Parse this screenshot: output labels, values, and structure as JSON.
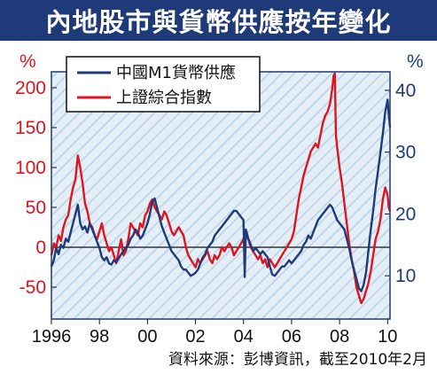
{
  "title": "內地股市與貨幣供應按年變化",
  "source": "資料來源：彭博資訊，截至2010年2月",
  "colors": {
    "title_bg": "#1e3a78",
    "m1": "#1e3a78",
    "index": "#e0141e",
    "plot_bg": "#d9e8f4",
    "zero_line": "#111111"
  },
  "chart_data": {
    "type": "line",
    "title": "內地股市與貨幣供應按年變化",
    "x_tick_labels": [
      "1996",
      "98",
      "00",
      "02",
      "04",
      "06",
      "08",
      "10"
    ],
    "x_ticks": [
      1996,
      1998,
      2000,
      2002,
      2004,
      2006,
      2008,
      2010
    ],
    "xlim": [
      1996,
      2010.1
    ],
    "y_left": {
      "unit": "%",
      "ticks": [
        200,
        150,
        100,
        50,
        0,
        -50
      ],
      "tick_labels": [
        "200",
        "150",
        "100",
        "50",
        "0",
        "-50"
      ],
      "range": [
        -90,
        220
      ]
    },
    "y_right": {
      "unit": "%",
      "ticks": [
        40,
        30,
        20,
        10
      ],
      "tick_labels": [
        "40",
        "30",
        "20",
        "10"
      ],
      "range": [
        3,
        43
      ]
    },
    "legend_placement": "top-left",
    "series": [
      {
        "name": "中國M1貨幣供應",
        "axis": "right",
        "color": "#1e3a78",
        "points": [
          [
            1996.0,
            11.5
          ],
          [
            1996.1,
            12.5
          ],
          [
            1996.2,
            14.5
          ],
          [
            1996.3,
            13.5
          ],
          [
            1996.4,
            15.0
          ],
          [
            1996.5,
            14.5
          ],
          [
            1996.6,
            16.0
          ],
          [
            1996.7,
            15.5
          ],
          [
            1996.8,
            17.0
          ],
          [
            1996.9,
            18.5
          ],
          [
            1997.0,
            20.0
          ],
          [
            1997.1,
            21.5
          ],
          [
            1997.2,
            18.5
          ],
          [
            1997.3,
            17.5
          ],
          [
            1997.4,
            18.0
          ],
          [
            1997.5,
            17.0
          ],
          [
            1997.6,
            18.5
          ],
          [
            1997.7,
            17.5
          ],
          [
            1997.8,
            16.5
          ],
          [
            1997.9,
            15.5
          ],
          [
            1998.0,
            14.5
          ],
          [
            1998.1,
            13.0
          ],
          [
            1998.2,
            12.5
          ],
          [
            1998.3,
            13.0
          ],
          [
            1998.4,
            12.0
          ],
          [
            1998.5,
            11.8
          ],
          [
            1998.6,
            12.5
          ],
          [
            1998.7,
            12.2
          ],
          [
            1998.8,
            12.8
          ],
          [
            1998.9,
            13.5
          ],
          [
            1999.0,
            14.0
          ],
          [
            1999.1,
            14.5
          ],
          [
            1999.2,
            15.0
          ],
          [
            1999.3,
            16.0
          ],
          [
            1999.4,
            16.5
          ],
          [
            1999.5,
            17.5
          ],
          [
            1999.6,
            17.0
          ],
          [
            1999.7,
            16.0
          ],
          [
            1999.8,
            16.5
          ],
          [
            1999.9,
            17.5
          ],
          [
            2000.0,
            18.5
          ],
          [
            2000.1,
            20.0
          ],
          [
            2000.2,
            22.0
          ],
          [
            2000.3,
            22.5
          ],
          [
            2000.4,
            21.0
          ],
          [
            2000.5,
            19.5
          ],
          [
            2000.6,
            18.0
          ],
          [
            2000.7,
            17.0
          ],
          [
            2000.8,
            16.0
          ],
          [
            2000.9,
            15.0
          ],
          [
            2001.0,
            14.0
          ],
          [
            2001.1,
            13.5
          ],
          [
            2001.2,
            13.0
          ],
          [
            2001.3,
            12.5
          ],
          [
            2001.4,
            11.5
          ],
          [
            2001.5,
            11.0
          ],
          [
            2001.6,
            11.0
          ],
          [
            2001.7,
            10.5
          ],
          [
            2001.8,
            10.0
          ],
          [
            2001.9,
            10.2
          ],
          [
            2002.0,
            10.5
          ],
          [
            2002.1,
            11.0
          ],
          [
            2002.2,
            12.0
          ],
          [
            2002.3,
            13.0
          ],
          [
            2002.4,
            13.5
          ],
          [
            2002.5,
            14.5
          ],
          [
            2002.6,
            15.0
          ],
          [
            2002.7,
            15.5
          ],
          [
            2002.8,
            16.5
          ],
          [
            2002.9,
            17.0
          ],
          [
            2003.0,
            17.5
          ],
          [
            2003.1,
            18.0
          ],
          [
            2003.2,
            18.5
          ],
          [
            2003.3,
            19.0
          ],
          [
            2003.4,
            19.5
          ],
          [
            2003.5,
            20.0
          ],
          [
            2003.6,
            20.5
          ],
          [
            2003.7,
            20.5
          ],
          [
            2003.8,
            20.0
          ],
          [
            2003.9,
            19.5
          ],
          [
            2004.0,
            19.0
          ],
          [
            2004.05,
            9.8
          ],
          [
            2004.1,
            17.5
          ],
          [
            2004.2,
            16.0
          ],
          [
            2004.3,
            15.0
          ],
          [
            2004.4,
            14.0
          ],
          [
            2004.5,
            14.5
          ],
          [
            2004.6,
            14.0
          ],
          [
            2004.7,
            13.5
          ],
          [
            2004.8,
            14.0
          ],
          [
            2004.9,
            13.5
          ],
          [
            2005.0,
            13.0
          ],
          [
            2005.1,
            11.5
          ],
          [
            2005.2,
            10.2
          ],
          [
            2005.3,
            10.0
          ],
          [
            2005.4,
            10.5
          ],
          [
            2005.5,
            11.0
          ],
          [
            2005.6,
            11.5
          ],
          [
            2005.7,
            11.5
          ],
          [
            2005.8,
            12.0
          ],
          [
            2005.9,
            12.5
          ],
          [
            2006.0,
            12.0
          ],
          [
            2006.1,
            12.5
          ],
          [
            2006.2,
            13.0
          ],
          [
            2006.3,
            13.5
          ],
          [
            2006.4,
            14.0
          ],
          [
            2006.5,
            15.0
          ],
          [
            2006.6,
            15.5
          ],
          [
            2006.7,
            16.5
          ],
          [
            2006.8,
            16.0
          ],
          [
            2006.9,
            17.0
          ],
          [
            2007.0,
            18.0
          ],
          [
            2007.1,
            19.0
          ],
          [
            2007.2,
            19.5
          ],
          [
            2007.3,
            20.0
          ],
          [
            2007.4,
            20.5
          ],
          [
            2007.5,
            21.0
          ],
          [
            2007.6,
            21.5
          ],
          [
            2007.7,
            21.0
          ],
          [
            2007.8,
            20.0
          ],
          [
            2007.9,
            19.0
          ],
          [
            2008.0,
            18.5
          ],
          [
            2008.1,
            18.0
          ],
          [
            2008.2,
            17.5
          ],
          [
            2008.3,
            16.0
          ],
          [
            2008.4,
            14.5
          ],
          [
            2008.5,
            12.5
          ],
          [
            2008.6,
            11.0
          ],
          [
            2008.7,
            9.5
          ],
          [
            2008.8,
            8.0
          ],
          [
            2008.9,
            7.5
          ],
          [
            2009.0,
            8.5
          ],
          [
            2009.1,
            10.5
          ],
          [
            2009.2,
            14.0
          ],
          [
            2009.3,
            17.5
          ],
          [
            2009.4,
            20.5
          ],
          [
            2009.5,
            24.0
          ],
          [
            2009.6,
            27.0
          ],
          [
            2009.7,
            30.0
          ],
          [
            2009.8,
            33.0
          ],
          [
            2009.9,
            36.5
          ],
          [
            2010.0,
            38.5
          ],
          [
            2010.05,
            36.0
          ],
          [
            2010.1,
            34.0
          ]
        ]
      },
      {
        "name": "上證綜合指數",
        "axis": "left",
        "color": "#e0141e",
        "points": [
          [
            1996.0,
            -10
          ],
          [
            1996.1,
            5
          ],
          [
            1996.2,
            0
          ],
          [
            1996.3,
            15
          ],
          [
            1996.4,
            8
          ],
          [
            1996.5,
            25
          ],
          [
            1996.6,
            35
          ],
          [
            1996.7,
            40
          ],
          [
            1996.8,
            60
          ],
          [
            1996.9,
            75
          ],
          [
            1997.0,
            85
          ],
          [
            1997.1,
            115
          ],
          [
            1997.2,
            100
          ],
          [
            1997.3,
            80
          ],
          [
            1997.4,
            55
          ],
          [
            1997.5,
            45
          ],
          [
            1997.6,
            30
          ],
          [
            1997.7,
            25
          ],
          [
            1997.8,
            15
          ],
          [
            1997.9,
            10
          ],
          [
            1998.0,
            20
          ],
          [
            1998.1,
            30
          ],
          [
            1998.2,
            15
          ],
          [
            1998.3,
            5
          ],
          [
            1998.4,
            -5
          ],
          [
            1998.5,
            0
          ],
          [
            1998.6,
            -10
          ],
          [
            1998.7,
            -20
          ],
          [
            1998.8,
            -5
          ],
          [
            1998.9,
            10
          ],
          [
            1999.0,
            -10
          ],
          [
            1999.1,
            -5
          ],
          [
            1999.2,
            10
          ],
          [
            1999.3,
            30
          ],
          [
            1999.4,
            25
          ],
          [
            1999.5,
            20
          ],
          [
            1999.6,
            15
          ],
          [
            1999.7,
            30
          ],
          [
            1999.8,
            25
          ],
          [
            1999.9,
            40
          ],
          [
            2000.0,
            45
          ],
          [
            2000.1,
            55
          ],
          [
            2000.2,
            60
          ],
          [
            2000.3,
            50
          ],
          [
            2000.4,
            45
          ],
          [
            2000.5,
            40
          ],
          [
            2000.6,
            35
          ],
          [
            2000.7,
            45
          ],
          [
            2000.8,
            40
          ],
          [
            2000.9,
            30
          ],
          [
            2001.0,
            20
          ],
          [
            2001.1,
            15
          ],
          [
            2001.2,
            20
          ],
          [
            2001.3,
            25
          ],
          [
            2001.4,
            20
          ],
          [
            2001.5,
            15
          ],
          [
            2001.6,
            0
          ],
          [
            2001.7,
            -10
          ],
          [
            2001.8,
            -15
          ],
          [
            2001.9,
            -20
          ],
          [
            2002.0,
            -25
          ],
          [
            2002.1,
            -15
          ],
          [
            2002.2,
            -20
          ],
          [
            2002.3,
            -15
          ],
          [
            2002.4,
            -10
          ],
          [
            2002.5,
            -5
          ],
          [
            2002.6,
            -15
          ],
          [
            2002.7,
            -20
          ],
          [
            2002.8,
            -10
          ],
          [
            2002.9,
            -15
          ],
          [
            2003.0,
            -10
          ],
          [
            2003.1,
            0
          ],
          [
            2003.2,
            -5
          ],
          [
            2003.3,
            0
          ],
          [
            2003.4,
            5
          ],
          [
            2003.5,
            0
          ],
          [
            2003.6,
            -10
          ],
          [
            2003.7,
            -5
          ],
          [
            2003.8,
            0
          ],
          [
            2003.9,
            5
          ],
          [
            2004.0,
            10
          ],
          [
            2004.1,
            15
          ],
          [
            2004.2,
            10
          ],
          [
            2004.3,
            0
          ],
          [
            2004.4,
            -5
          ],
          [
            2004.5,
            -10
          ],
          [
            2004.6,
            -15
          ],
          [
            2004.7,
            -10
          ],
          [
            2004.8,
            -20
          ],
          [
            2004.9,
            -15
          ],
          [
            2005.0,
            -25
          ],
          [
            2005.1,
            -15
          ],
          [
            2005.2,
            -20
          ],
          [
            2005.3,
            -25
          ],
          [
            2005.4,
            -20
          ],
          [
            2005.5,
            -15
          ],
          [
            2005.6,
            -10
          ],
          [
            2005.7,
            -5
          ],
          [
            2005.8,
            0
          ],
          [
            2005.9,
            5
          ],
          [
            2006.0,
            10
          ],
          [
            2006.1,
            20
          ],
          [
            2006.2,
            40
          ],
          [
            2006.3,
            60
          ],
          [
            2006.4,
            75
          ],
          [
            2006.5,
            90
          ],
          [
            2006.6,
            100
          ],
          [
            2006.7,
            110
          ],
          [
            2006.8,
            120
          ],
          [
            2006.9,
            125
          ],
          [
            2007.0,
            130
          ],
          [
            2007.1,
            125
          ],
          [
            2007.2,
            140
          ],
          [
            2007.3,
            155
          ],
          [
            2007.4,
            165
          ],
          [
            2007.5,
            170
          ],
          [
            2007.6,
            180
          ],
          [
            2007.7,
            200
          ],
          [
            2007.75,
            215
          ],
          [
            2007.8,
            218
          ],
          [
            2007.85,
            140
          ],
          [
            2007.9,
            125
          ],
          [
            2008.0,
            100
          ],
          [
            2008.1,
            80
          ],
          [
            2008.2,
            55
          ],
          [
            2008.3,
            30
          ],
          [
            2008.4,
            5
          ],
          [
            2008.5,
            -15
          ],
          [
            2008.6,
            -30
          ],
          [
            2008.7,
            -50
          ],
          [
            2008.8,
            -60
          ],
          [
            2008.9,
            -70
          ],
          [
            2009.0,
            -65
          ],
          [
            2009.1,
            -55
          ],
          [
            2009.2,
            -45
          ],
          [
            2009.3,
            -30
          ],
          [
            2009.4,
            -10
          ],
          [
            2009.5,
            10
          ],
          [
            2009.6,
            20
          ],
          [
            2009.7,
            35
          ],
          [
            2009.8,
            60
          ],
          [
            2009.9,
            75
          ],
          [
            2010.0,
            65
          ],
          [
            2010.05,
            50
          ],
          [
            2010.1,
            45
          ]
        ]
      }
    ]
  }
}
